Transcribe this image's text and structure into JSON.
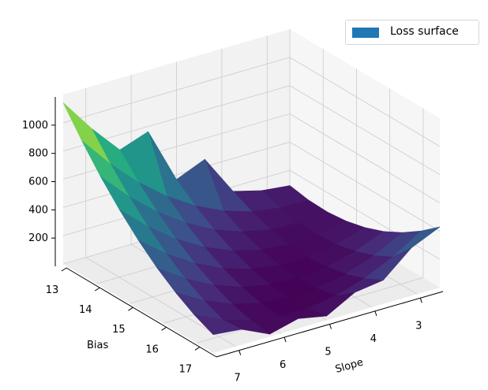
{
  "chart_data": {
    "type": "surface",
    "xlabel": "Slope",
    "ylabel": "Bias",
    "zlabel": "",
    "x": [
      2.5,
      3.125,
      3.75,
      4.375,
      5.0,
      5.625,
      6.25,
      6.875,
      7.5
    ],
    "y": [
      13.0,
      13.5625,
      14.125,
      14.6875,
      15.25,
      15.8125,
      16.375,
      16.9375,
      17.5
    ],
    "z": [
      [
        92,
        114,
        167,
        452,
        367,
        764,
        692,
        902,
        1142
      ],
      [
        68,
        70,
        101,
        165,
        259,
        385,
        541,
        730,
        950
      ],
      [
        63,
        43,
        53,
        96,
        169,
        274,
        410,
        577,
        775
      ],
      [
        77,
        36,
        25,
        46,
        99,
        182,
        297,
        444,
        621
      ],
      [
        110,
        47,
        16,
        16,
        47,
        110,
        204,
        329,
        485
      ],
      [
        161,
        78,
        25,
        4,
        14,
        56,
        129,
        232,
        367
      ],
      [
        232,
        127,
        54,
        11,
        1,
        21,
        72,
        156,
        270
      ],
      [
        322,
        196,
        101,
        37,
        6,
        5,
        35,
        98,
        190
      ],
      [
        430,
        340,
        168,
        140,
        30,
        70,
        18,
        110,
        130
      ]
    ],
    "xlim": [
      2.5,
      7.5
    ],
    "ylim": [
      13,
      17.5
    ],
    "zlim": [
      0,
      1200
    ],
    "xticks": [
      "3",
      "4",
      "5",
      "6",
      "7"
    ],
    "yticks": [
      "13",
      "14",
      "15",
      "16",
      "17"
    ],
    "zticks": [
      "200",
      "400",
      "600",
      "800",
      "1000"
    ],
    "colormap": "viridis",
    "grid": true,
    "legend": {
      "label": "Loss surface",
      "position": "top-right",
      "color": "#1f77b4"
    }
  }
}
